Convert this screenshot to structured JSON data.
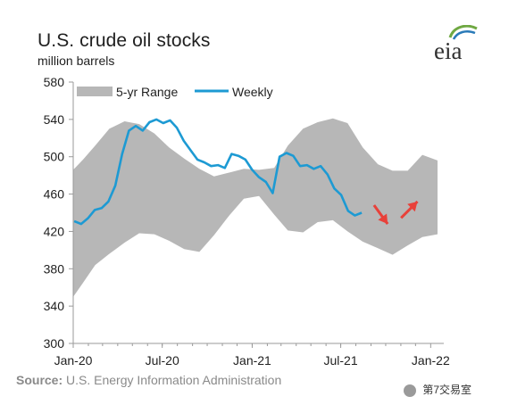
{
  "header": {
    "title": "U.S. crude oil stocks",
    "subtitle": "million barrels"
  },
  "logo": {
    "text": "eia",
    "icon": "eia-logo-leaf-arcs"
  },
  "source": {
    "label": "Source:",
    "text": "U.S. Energy Information Administration"
  },
  "watermark": {
    "text": "第7交易室",
    "icon": "wechat-account-icon"
  },
  "colors": {
    "range_fill": "#b7b7b7",
    "weekly_line": "#1d9ad3",
    "arrow": "#e8413a",
    "axis": "#9a9a9a",
    "text": "#1f1f1f",
    "logo_green": "#6fa842",
    "logo_blue": "#2a7ab8"
  },
  "chart_data": {
    "type": "area",
    "x_axis": {
      "ticks": [
        "Jan-20",
        "Jul-20",
        "Jan-21",
        "Jul-21",
        "Jan-22"
      ],
      "range": [
        "2020-01-01",
        "2022-01-15"
      ]
    },
    "y_axis": {
      "ticks": [
        300,
        340,
        380,
        420,
        460,
        500,
        540,
        580
      ],
      "ylim": [
        300,
        580
      ]
    },
    "grid": false,
    "legend": {
      "position": "top-left",
      "items": [
        {
          "label": "5-yr Range",
          "style": "area"
        },
        {
          "label": "Weekly",
          "style": "line"
        }
      ]
    },
    "series": [
      {
        "name": "5-yr Range",
        "kind": "band",
        "x": [
          "2020-01-01",
          "2020-01-21",
          "2020-02-15",
          "2020-03-15",
          "2020-04-15",
          "2020-05-15",
          "2020-06-15",
          "2020-07-15",
          "2020-08-15",
          "2020-09-15",
          "2020-10-15",
          "2020-11-15",
          "2020-12-15",
          "2021-01-15",
          "2021-02-15",
          "2021-03-15",
          "2021-04-15",
          "2021-05-15",
          "2021-06-15",
          "2021-07-15",
          "2021-08-15",
          "2021-09-15",
          "2021-10-15",
          "2021-11-15",
          "2021-12-15",
          "2022-01-15"
        ],
        "low": [
          350,
          365,
          384,
          396,
          408,
          418,
          417,
          410,
          401,
          398,
          416,
          437,
          455,
          458,
          438,
          421,
          419,
          430,
          432,
          420,
          409,
          402,
          395,
          405,
          414,
          417
        ],
        "high": [
          486,
          497,
          512,
          530,
          538,
          535,
          525,
          510,
          498,
          487,
          479,
          483,
          487,
          486,
          488,
          512,
          530,
          537,
          541,
          536,
          510,
          492,
          485,
          485,
          502,
          496
        ]
      },
      {
        "name": "Weekly",
        "kind": "line",
        "x": [
          "2020-01-03",
          "2020-01-17",
          "2020-01-31",
          "2020-02-14",
          "2020-02-28",
          "2020-03-13",
          "2020-03-27",
          "2020-04-10",
          "2020-04-24",
          "2020-05-08",
          "2020-05-22",
          "2020-06-05",
          "2020-06-19",
          "2020-07-03",
          "2020-07-17",
          "2020-07-31",
          "2020-08-14",
          "2020-08-28",
          "2020-09-11",
          "2020-09-25",
          "2020-10-09",
          "2020-10-23",
          "2020-11-06",
          "2020-11-20",
          "2020-12-04",
          "2020-12-18",
          "2021-01-01",
          "2021-01-15",
          "2021-01-29",
          "2021-02-12",
          "2021-02-26",
          "2021-03-12",
          "2021-03-26",
          "2021-04-09",
          "2021-04-23",
          "2021-05-07",
          "2021-05-21",
          "2021-06-04",
          "2021-06-18",
          "2021-07-02",
          "2021-07-16",
          "2021-07-30",
          "2021-08-13"
        ],
        "y": [
          431,
          428,
          434,
          443,
          445,
          452,
          469,
          503,
          528,
          533,
          528,
          537,
          540,
          536,
          539,
          531,
          517,
          507,
          497,
          494,
          490,
          491,
          488,
          503,
          501,
          497,
          486,
          478,
          473,
          461,
          500,
          504,
          501,
          490,
          491,
          487,
          490,
          481,
          466,
          459,
          442,
          437,
          440
        ]
      }
    ],
    "annotations": [
      {
        "type": "arrow",
        "direction": "down",
        "x": "2021-10-05",
        "y": 428
      },
      {
        "type": "arrow",
        "direction": "up",
        "x": "2021-12-05",
        "y": 452
      }
    ]
  }
}
